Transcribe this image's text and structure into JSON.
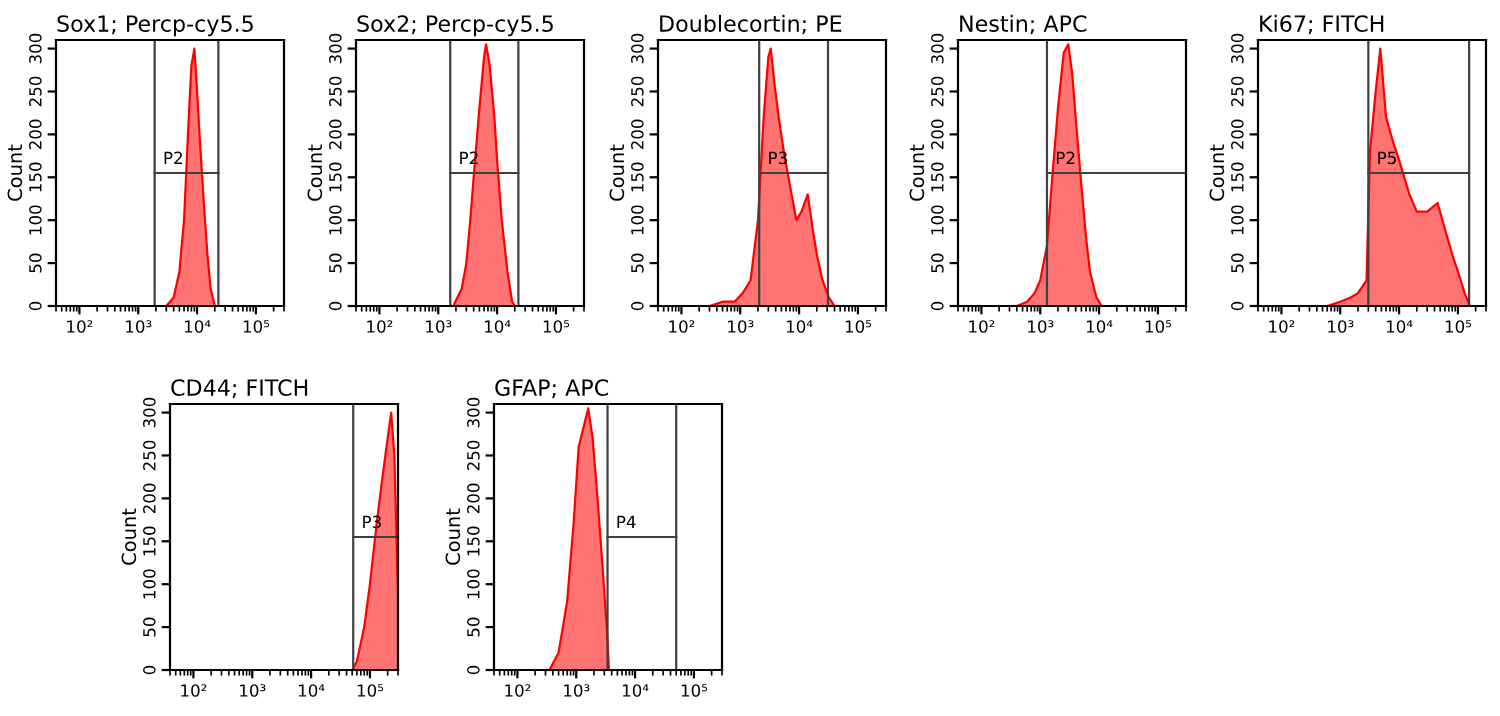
{
  "chart_data": [
    {
      "type": "area",
      "title": "Sox1; Percp-cy5.5",
      "ylabel": "Count",
      "log": "x",
      "xlim": [
        40,
        300000
      ],
      "xticks": [
        {
          "value": 100,
          "label": "10²"
        },
        {
          "value": 1000,
          "label": "10³"
        },
        {
          "value": 10000,
          "label": "10⁴"
        },
        {
          "value": 100000,
          "label": "10⁵"
        }
      ],
      "ylim": [
        0,
        310
      ],
      "yticks": [
        0,
        50,
        100,
        150,
        200,
        250,
        300
      ],
      "series": [
        {
          "color": "#ff0000",
          "x": [
            3000,
            4000,
            5000,
            6000,
            7000,
            8000,
            9000,
            10000,
            11000,
            13000,
            15000,
            17000,
            20000
          ],
          "values": [
            0,
            10,
            40,
            100,
            200,
            280,
            300,
            250,
            200,
            120,
            60,
            20,
            0
          ]
        }
      ],
      "ref_lines": [
        {
          "axis": "x",
          "value": 1900,
          "label": "P2"
        },
        {
          "axis": "x",
          "value": 23000
        }
      ]
    },
    {
      "type": "area",
      "title": "Sox2; Percp-cy5.5",
      "ylabel": "Count",
      "log": "x",
      "xlim": [
        40,
        300000
      ],
      "xticks": [
        {
          "value": 100,
          "label": "10²"
        },
        {
          "value": 1000,
          "label": "10³"
        },
        {
          "value": 10000,
          "label": "10⁴"
        },
        {
          "value": 100000,
          "label": "10⁵"
        }
      ],
      "ylim": [
        0,
        310
      ],
      "yticks": [
        0,
        50,
        100,
        150,
        200,
        250,
        300
      ],
      "series": [
        {
          "color": "#ff0000",
          "x": [
            1800,
            2500,
            3000,
            3500,
            4000,
            5000,
            6000,
            6500,
            7500,
            9000,
            10000,
            12000,
            15000,
            18000,
            20000
          ],
          "values": [
            0,
            20,
            50,
            100,
            150,
            230,
            290,
            305,
            280,
            220,
            170,
            100,
            40,
            5,
            0
          ]
        }
      ],
      "ref_lines": [
        {
          "axis": "x",
          "value": 1600,
          "label": "P2"
        },
        {
          "axis": "x",
          "value": 23000
        }
      ]
    },
    {
      "type": "area",
      "title": "Doublecortin; PE",
      "ylabel": "Count",
      "log": "x",
      "xlim": [
        40,
        300000
      ],
      "xticks": [
        {
          "value": 100,
          "label": "10²"
        },
        {
          "value": 1000,
          "label": "10³"
        },
        {
          "value": 10000,
          "label": "10⁴"
        },
        {
          "value": 100000,
          "label": "10⁵"
        }
      ],
      "ylim": [
        0,
        310
      ],
      "yticks": [
        0,
        50,
        100,
        150,
        200,
        250,
        300
      ],
      "series": [
        {
          "color": "#ff0000",
          "x": [
            300,
            500,
            800,
            1100,
            1500,
            2000,
            2500,
            3000,
            3300,
            3800,
            4500,
            5500,
            7000,
            9000,
            11000,
            14000,
            17000,
            20000,
            25000,
            32000,
            40000
          ],
          "values": [
            0,
            5,
            5,
            15,
            30,
            100,
            220,
            290,
            300,
            260,
            220,
            180,
            140,
            100,
            110,
            130,
            90,
            60,
            30,
            10,
            0
          ]
        }
      ],
      "ref_lines": [
        {
          "axis": "x",
          "value": 2100,
          "label": "P3"
        },
        {
          "axis": "x",
          "value": 31000
        }
      ]
    },
    {
      "type": "area",
      "title": "Nestin; APC",
      "ylabel": "Count",
      "log": "x",
      "xlim": [
        40,
        300000
      ],
      "xticks": [
        {
          "value": 100,
          "label": "10²"
        },
        {
          "value": 1000,
          "label": "10³"
        },
        {
          "value": 10000,
          "label": "10⁴"
        },
        {
          "value": 100000,
          "label": "10⁵"
        }
      ],
      "ylim": [
        0,
        310
      ],
      "yticks": [
        0,
        50,
        100,
        150,
        200,
        250,
        300
      ],
      "series": [
        {
          "color": "#ff0000",
          "x": [
            400,
            600,
            800,
            1000,
            1300,
            1600,
            2000,
            2500,
            3000,
            3500,
            4000,
            5000,
            6000,
            7000,
            9000,
            11000
          ],
          "values": [
            0,
            5,
            15,
            30,
            70,
            150,
            230,
            295,
            305,
            270,
            220,
            140,
            80,
            40,
            10,
            0
          ]
        }
      ],
      "ref_lines": [
        {
          "axis": "x",
          "value": 1300,
          "label": "P2"
        }
      ]
    },
    {
      "type": "area",
      "title": "Ki67; FITCH",
      "ylabel": "Count",
      "log": "x",
      "xlim": [
        40,
        300000
      ],
      "xticks": [
        {
          "value": 100,
          "label": "10²"
        },
        {
          "value": 1000,
          "label": "10³"
        },
        {
          "value": 10000,
          "label": "10⁴"
        },
        {
          "value": 100000,
          "label": "10⁵"
        }
      ],
      "ylim": [
        0,
        310
      ],
      "yticks": [
        0,
        50,
        100,
        150,
        200,
        250,
        300
      ],
      "series": [
        {
          "color": "#ff0000",
          "x": [
            600,
            1000,
            1500,
            2000,
            2800,
            3200,
            4000,
            4800,
            6000,
            8000,
            10000,
            15000,
            20000,
            30000,
            45000,
            60000,
            80000,
            100000,
            130000,
            160000
          ],
          "values": [
            0,
            5,
            10,
            15,
            30,
            180,
            250,
            300,
            220,
            190,
            170,
            130,
            110,
            110,
            120,
            90,
            60,
            40,
            15,
            0
          ]
        }
      ],
      "ref_lines": [
        {
          "axis": "x",
          "value": 3000,
          "label": "P5"
        },
        {
          "axis": "x",
          "value": 155000
        }
      ]
    },
    {
      "type": "area",
      "title": "CD44; FITCH",
      "ylabel": "Count",
      "log": "x",
      "xlim": [
        40,
        300000
      ],
      "xticks": [
        {
          "value": 100,
          "label": "10²"
        },
        {
          "value": 1000,
          "label": "10³"
        },
        {
          "value": 10000,
          "label": "10⁴"
        },
        {
          "value": 100000,
          "label": "10⁵"
        }
      ],
      "ylim": [
        0,
        310
      ],
      "yticks": [
        0,
        50,
        100,
        150,
        200,
        250,
        300
      ],
      "series": [
        {
          "color": "#ff0000",
          "x": [
            50000,
            60000,
            80000,
            100000,
            130000,
            160000,
            200000,
            230000,
            260000,
            300000
          ],
          "values": [
            0,
            10,
            50,
            100,
            170,
            220,
            270,
            300,
            250,
            90
          ]
        }
      ],
      "ref_lines": [
        {
          "axis": "x",
          "value": 52000,
          "label": "P3"
        }
      ]
    },
    {
      "type": "area",
      "title": "GFAP; APC",
      "ylabel": "Count",
      "log": "x",
      "xlim": [
        40,
        300000
      ],
      "xticks": [
        {
          "value": 100,
          "label": "10²"
        },
        {
          "value": 1000,
          "label": "10³"
        },
        {
          "value": 10000,
          "label": "10⁴"
        },
        {
          "value": 100000,
          "label": "10⁵"
        }
      ],
      "ylim": [
        0,
        310
      ],
      "yticks": [
        0,
        50,
        100,
        150,
        200,
        250,
        300
      ],
      "series": [
        {
          "color": "#ff0000",
          "x": [
            350,
            500,
            700,
            900,
            1100,
            1300,
            1600,
            1900,
            2300,
            2800,
            3300,
            3600
          ],
          "values": [
            0,
            20,
            80,
            170,
            260,
            280,
            305,
            270,
            200,
            120,
            50,
            0
          ]
        }
      ],
      "ref_lines": [
        {
          "axis": "x",
          "value": 3400,
          "label": "P4"
        },
        {
          "axis": "x",
          "value": 50000
        }
      ]
    }
  ]
}
